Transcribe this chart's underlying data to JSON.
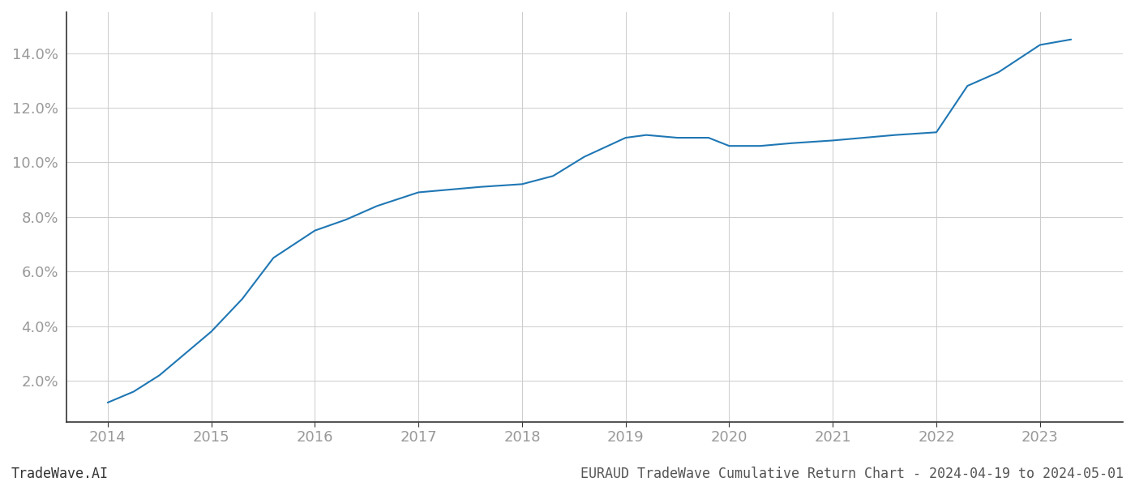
{
  "x_values": [
    2014.0,
    2014.25,
    2014.5,
    2015.0,
    2015.3,
    2015.6,
    2016.0,
    2016.3,
    2016.6,
    2017.0,
    2017.3,
    2017.6,
    2018.0,
    2018.3,
    2018.6,
    2019.0,
    2019.2,
    2019.5,
    2019.8,
    2020.0,
    2020.3,
    2020.6,
    2021.0,
    2021.3,
    2021.6,
    2022.0,
    2022.3,
    2022.6,
    2023.0,
    2023.3
  ],
  "y_values": [
    1.2,
    1.6,
    2.2,
    3.8,
    5.0,
    6.5,
    7.5,
    7.9,
    8.4,
    8.9,
    9.0,
    9.1,
    9.2,
    9.5,
    10.2,
    10.9,
    11.0,
    10.9,
    10.9,
    10.6,
    10.6,
    10.7,
    10.8,
    10.9,
    11.0,
    11.1,
    12.8,
    13.3,
    14.3,
    14.5
  ],
  "line_color": "#1f77b4",
  "line_width": 1.5,
  "ytick_labels": [
    "2.0%",
    "4.0%",
    "6.0%",
    "8.0%",
    "10.0%",
    "12.0%",
    "14.0%"
  ],
  "ytick_values": [
    2.0,
    4.0,
    6.0,
    8.0,
    10.0,
    12.0,
    14.0
  ],
  "xtick_values": [
    2014,
    2015,
    2016,
    2017,
    2018,
    2019,
    2020,
    2021,
    2022,
    2023
  ],
  "xlim": [
    2013.6,
    2023.8
  ],
  "ylim": [
    0.5,
    15.5
  ],
  "grid_color": "#cccccc",
  "grid_linewidth": 0.7,
  "bg_color": "#ffffff",
  "footer_left": "TradeWave.AI",
  "footer_right": "EURAUD TradeWave Cumulative Return Chart - 2024-04-19 to 2024-05-01",
  "footer_fontsize": 12,
  "tick_label_color": "#999999",
  "tick_fontsize": 13,
  "left_spine_color": "#333333",
  "bottom_spine_color": "#333333"
}
